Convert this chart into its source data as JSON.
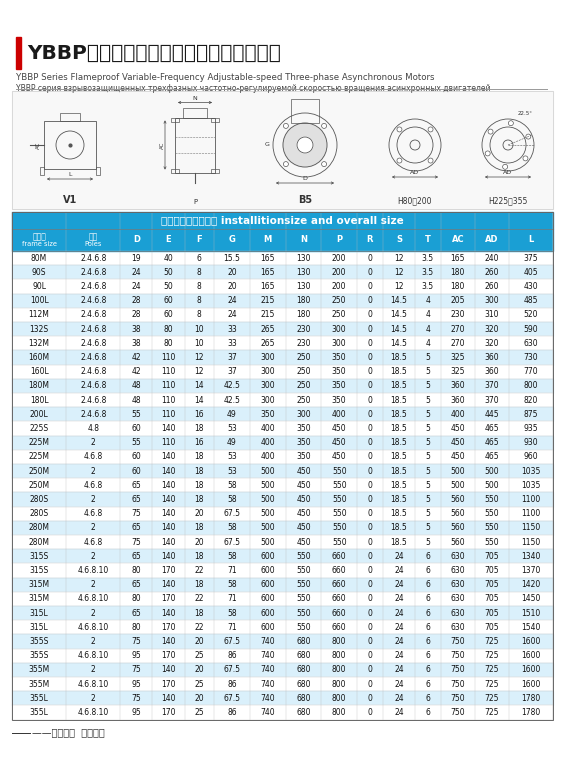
{
  "title_chinese": "YBBP系列隔爆型变频调速三相异步电动机",
  "title_english": "YBBP Series Flameproof Variable-Frequency Adjustable-speed Three-phase Asynchronous Motors",
  "title_russian": "YBBP серия взрывозащищенных трехфазных частотно-регулируемой скоростью вращения асинхронных двигателей",
  "red_bar_color": "#cc0000",
  "title_color": "#1a1a1a",
  "header_bg": "#1a9fd4",
  "header_text": "#ffffff",
  "row_odd_bg": "#ffffff",
  "row_even_bg": "#daf0fb",
  "table_title": "安装尺寸及外形尺寸 installitionsize and overall size",
  "col_headers_line1": [
    "机座号",
    "极数",
    "D",
    "E",
    "F",
    "G",
    "M",
    "N",
    "P",
    "R",
    "S",
    "T",
    "AC",
    "AD",
    "L"
  ],
  "col_headers_line2": [
    "frame size",
    "Poles",
    "",
    "",
    "",
    "",
    "",
    "",
    "",
    "",
    "",
    "",
    "",
    "",
    ""
  ],
  "rows": [
    [
      "80M",
      "2.4.6.8",
      "19",
      "40",
      "6",
      "15.5",
      "165",
      "130",
      "200",
      "0",
      "12",
      "3.5",
      "165",
      "240",
      "375"
    ],
    [
      "90S",
      "2.4.6.8",
      "24",
      "50",
      "8",
      "20",
      "165",
      "130",
      "200",
      "0",
      "12",
      "3.5",
      "180",
      "260",
      "405"
    ],
    [
      "90L",
      "2.4.6.8",
      "24",
      "50",
      "8",
      "20",
      "165",
      "130",
      "200",
      "0",
      "12",
      "3.5",
      "180",
      "260",
      "430"
    ],
    [
      "100L",
      "2.4.6.8",
      "28",
      "60",
      "8",
      "24",
      "215",
      "180",
      "250",
      "0",
      "14.5",
      "4",
      "205",
      "300",
      "485"
    ],
    [
      "112M",
      "2.4.6.8",
      "28",
      "60",
      "8",
      "24",
      "215",
      "180",
      "250",
      "0",
      "14.5",
      "4",
      "230",
      "310",
      "520"
    ],
    [
      "132S",
      "2.4.6.8",
      "38",
      "80",
      "10",
      "33",
      "265",
      "230",
      "300",
      "0",
      "14.5",
      "4",
      "270",
      "320",
      "590"
    ],
    [
      "132M",
      "2.4.6.8",
      "38",
      "80",
      "10",
      "33",
      "265",
      "230",
      "300",
      "0",
      "14.5",
      "4",
      "270",
      "320",
      "630"
    ],
    [
      "160M",
      "2.4.6.8",
      "42",
      "110",
      "12",
      "37",
      "300",
      "250",
      "350",
      "0",
      "18.5",
      "5",
      "325",
      "360",
      "730"
    ],
    [
      "160L",
      "2.4.6.8",
      "42",
      "110",
      "12",
      "37",
      "300",
      "250",
      "350",
      "0",
      "18.5",
      "5",
      "325",
      "360",
      "770"
    ],
    [
      "180M",
      "2.4.6.8",
      "48",
      "110",
      "14",
      "42.5",
      "300",
      "250",
      "350",
      "0",
      "18.5",
      "5",
      "360",
      "370",
      "800"
    ],
    [
      "180L",
      "2.4.6.8",
      "48",
      "110",
      "14",
      "42.5",
      "300",
      "250",
      "350",
      "0",
      "18.5",
      "5",
      "360",
      "370",
      "820"
    ],
    [
      "200L",
      "2.4.6.8",
      "55",
      "110",
      "16",
      "49",
      "350",
      "300",
      "400",
      "0",
      "18.5",
      "5",
      "400",
      "445",
      "875"
    ],
    [
      "225S",
      "4.8",
      "60",
      "140",
      "18",
      "53",
      "400",
      "350",
      "450",
      "0",
      "18.5",
      "5",
      "450",
      "465",
      "935"
    ],
    [
      "225M",
      "2",
      "55",
      "110",
      "16",
      "49",
      "400",
      "350",
      "450",
      "0",
      "18.5",
      "5",
      "450",
      "465",
      "930"
    ],
    [
      "225M",
      "4.6.8",
      "60",
      "140",
      "18",
      "53",
      "400",
      "350",
      "450",
      "0",
      "18.5",
      "5",
      "450",
      "465",
      "960"
    ],
    [
      "250M",
      "2",
      "60",
      "140",
      "18",
      "53",
      "500",
      "450",
      "550",
      "0",
      "18.5",
      "5",
      "500",
      "500",
      "1035"
    ],
    [
      "250M",
      "4.6.8",
      "65",
      "140",
      "18",
      "58",
      "500",
      "450",
      "550",
      "0",
      "18.5",
      "5",
      "500",
      "500",
      "1035"
    ],
    [
      "280S",
      "2",
      "65",
      "140",
      "18",
      "58",
      "500",
      "450",
      "550",
      "0",
      "18.5",
      "5",
      "560",
      "550",
      "1100"
    ],
    [
      "280S",
      "4.6.8",
      "75",
      "140",
      "20",
      "67.5",
      "500",
      "450",
      "550",
      "0",
      "18.5",
      "5",
      "560",
      "550",
      "1100"
    ],
    [
      "280M",
      "2",
      "65",
      "140",
      "18",
      "58",
      "500",
      "450",
      "550",
      "0",
      "18.5",
      "5",
      "560",
      "550",
      "1150"
    ],
    [
      "280M",
      "4.6.8",
      "75",
      "140",
      "20",
      "67.5",
      "500",
      "450",
      "550",
      "0",
      "18.5",
      "5",
      "560",
      "550",
      "1150"
    ],
    [
      "315S",
      "2",
      "65",
      "140",
      "18",
      "58",
      "600",
      "550",
      "660",
      "0",
      "24",
      "6",
      "630",
      "705",
      "1340"
    ],
    [
      "315S",
      "4.6.8.10",
      "80",
      "170",
      "22",
      "71",
      "600",
      "550",
      "660",
      "0",
      "24",
      "6",
      "630",
      "705",
      "1370"
    ],
    [
      "315M",
      "2",
      "65",
      "140",
      "18",
      "58",
      "600",
      "550",
      "660",
      "0",
      "24",
      "6",
      "630",
      "705",
      "1420"
    ],
    [
      "315M",
      "4.6.8.10",
      "80",
      "170",
      "22",
      "71",
      "600",
      "550",
      "660",
      "0",
      "24",
      "6",
      "630",
      "705",
      "1450"
    ],
    [
      "315L",
      "2",
      "65",
      "140",
      "18",
      "58",
      "600",
      "550",
      "660",
      "0",
      "24",
      "6",
      "630",
      "705",
      "1510"
    ],
    [
      "315L",
      "4.6.8.10",
      "80",
      "170",
      "22",
      "71",
      "600",
      "550",
      "660",
      "0",
      "24",
      "6",
      "630",
      "705",
      "1540"
    ],
    [
      "355S",
      "2",
      "75",
      "140",
      "20",
      "67.5",
      "740",
      "680",
      "800",
      "0",
      "24",
      "6",
      "750",
      "725",
      "1600"
    ],
    [
      "355S",
      "4.6.8.10",
      "95",
      "170",
      "25",
      "86",
      "740",
      "680",
      "800",
      "0",
      "24",
      "6",
      "750",
      "725",
      "1600"
    ],
    [
      "355M",
      "2",
      "75",
      "140",
      "20",
      "67.5",
      "740",
      "680",
      "800",
      "0",
      "24",
      "6",
      "750",
      "725",
      "1600"
    ],
    [
      "355M",
      "4.6.8.10",
      "95",
      "170",
      "25",
      "86",
      "740",
      "680",
      "800",
      "0",
      "24",
      "6",
      "750",
      "725",
      "1600"
    ],
    [
      "355L",
      "2",
      "75",
      "140",
      "20",
      "67.5",
      "740",
      "680",
      "800",
      "0",
      "24",
      "6",
      "750",
      "725",
      "1780"
    ],
    [
      "355L",
      "4.6.8.10",
      "95",
      "170",
      "25",
      "86",
      "740",
      "680",
      "800",
      "0",
      "24",
      "6",
      "750",
      "725",
      "1780"
    ]
  ],
  "footer_text": "——以诚待人  以质取胜",
  "bg_color": "#ffffff"
}
